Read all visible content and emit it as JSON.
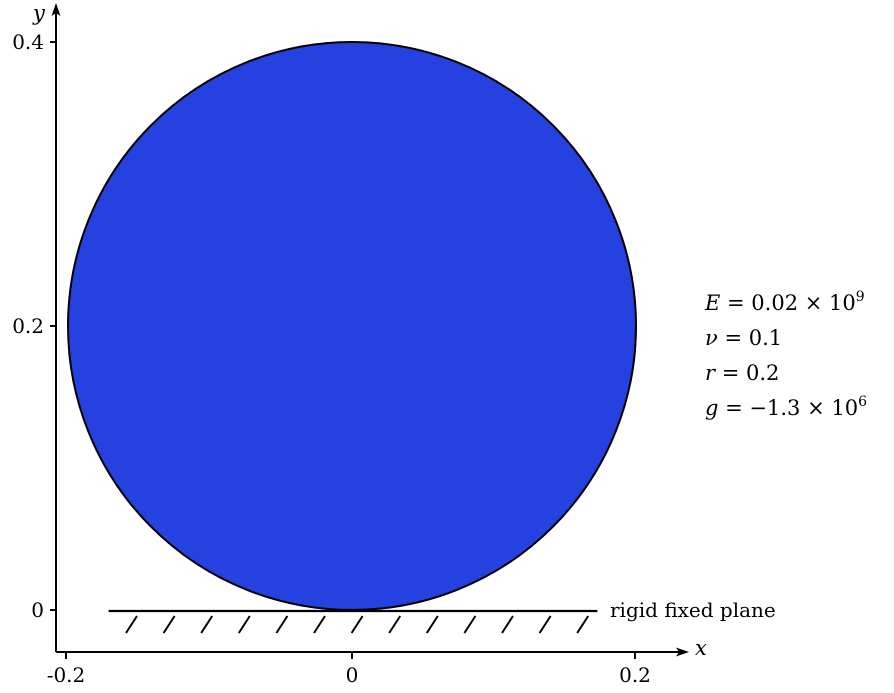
{
  "axes": {
    "x_label": "x",
    "y_label": "y",
    "x_ticks": [
      "-0.2",
      "0",
      "0.2"
    ],
    "y_ticks": [
      "0",
      "0.2",
      "0.4"
    ],
    "x_tick_values": [
      -0.2,
      0,
      0.2
    ],
    "y_tick_values": [
      0,
      0.2,
      0.4
    ]
  },
  "disc": {
    "center_x": 0,
    "center_y": 0.2,
    "radius": 0.2,
    "fill_color": "#2541df",
    "stroke_color": "#000000"
  },
  "plane": {
    "label": "rigid fixed plane",
    "x_start": -0.17,
    "x_end": 0.17,
    "y": 0
  },
  "parameters": [
    {
      "symbol": "E",
      "value": "0.02 × 10",
      "exponent": "9"
    },
    {
      "symbol": "ν",
      "value": "0.1",
      "exponent": ""
    },
    {
      "symbol": "r",
      "value": "0.2",
      "exponent": ""
    },
    {
      "symbol": "g",
      "value": "−1.3 × 10",
      "exponent": "6"
    }
  ]
}
